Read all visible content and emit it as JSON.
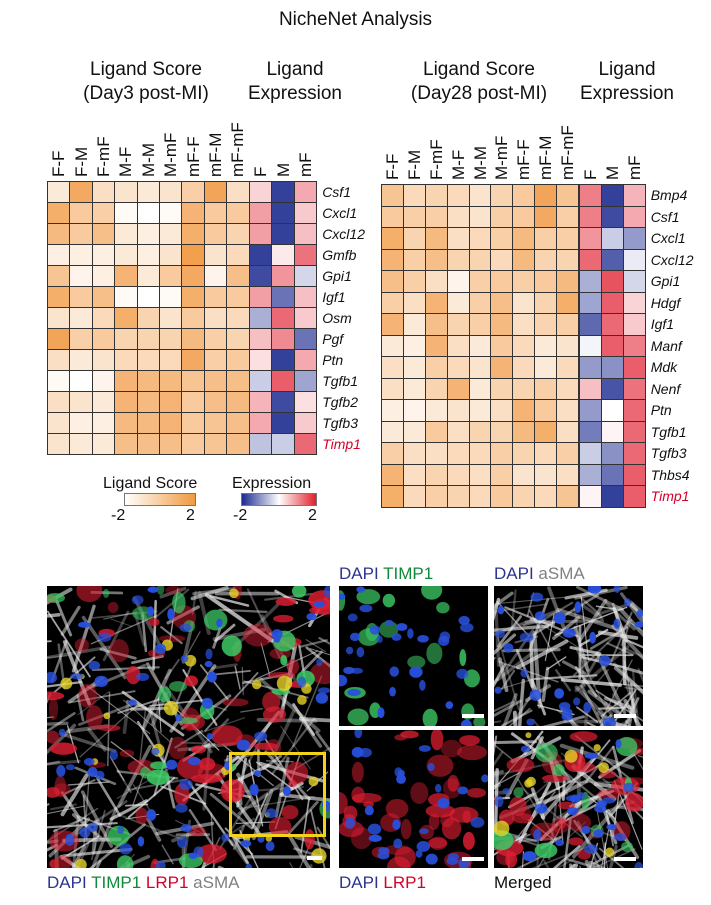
{
  "title": "NicheNet Analysis",
  "colors": {
    "dapi": "#2b3590",
    "timp1": "#0e8a3a",
    "lrp1": "#d4002a",
    "asma": "#808080",
    "gene_highlight": "#d4002a",
    "zoom_box": "#f2d21b"
  },
  "panel_day3": {
    "score_header": [
      "Ligand Score",
      "(Day3 post-MI)"
    ],
    "expr_header": [
      "Ligand",
      "Expression"
    ],
    "score_columns": [
      "F-F",
      "F-M",
      "F-mF",
      "M-F",
      "M-M",
      "M-mF",
      "mF-F",
      "mF-M",
      "mF-mF"
    ],
    "expr_columns": [
      "F",
      "M",
      "mF"
    ],
    "genes": [
      "Csf1",
      "Cxcl1",
      "Cxcl12",
      "Gmfb",
      "Gpi1",
      "Igf1",
      "Osm",
      "Pgf",
      "Ptn",
      "Tgfb1",
      "Tgfb2",
      "Tgfb3",
      "Timp1"
    ],
    "score": [
      [
        0.4,
        1.6,
        0.6,
        0.5,
        0.4,
        0.5,
        0.9,
        1.7,
        0.6
      ],
      [
        1.5,
        1.0,
        0.9,
        0.1,
        0.0,
        0.1,
        1.4,
        1.0,
        1.0
      ],
      [
        1.3,
        1.0,
        1.2,
        0.4,
        0.3,
        0.4,
        1.5,
        1.0,
        0.8
      ],
      [
        0.3,
        0.3,
        0.3,
        0.4,
        0.3,
        0.5,
        1.8,
        0.5,
        0.7
      ],
      [
        1.1,
        0.2,
        0.3,
        1.4,
        0.4,
        1.0,
        1.6,
        0.2,
        1.2
      ],
      [
        1.5,
        1.0,
        1.2,
        0.1,
        0.0,
        0.1,
        1.5,
        1.0,
        1.0
      ],
      [
        0.5,
        0.4,
        0.7,
        1.5,
        0.8,
        0.5,
        1.0,
        0.6,
        0.7
      ],
      [
        1.7,
        0.9,
        1.0,
        0.8,
        0.8,
        0.8,
        1.3,
        0.9,
        0.8
      ],
      [
        0.6,
        0.4,
        0.5,
        0.7,
        0.7,
        0.7,
        1.6,
        0.9,
        1.0
      ],
      [
        0.1,
        0.0,
        0.2,
        1.4,
        1.3,
        1.3,
        1.1,
        1.2,
        1.2
      ],
      [
        0.6,
        0.5,
        0.4,
        1.4,
        1.3,
        1.4,
        1.0,
        1.2,
        1.3
      ],
      [
        0.5,
        0.3,
        0.3,
        1.3,
        1.3,
        1.4,
        1.0,
        1.1,
        1.2
      ],
      [
        0.5,
        0.4,
        0.4,
        1.2,
        1.2,
        1.2,
        1.0,
        1.1,
        1.2
      ]
    ],
    "expression": [
      [
        0.4,
        -1.9,
        0.8
      ],
      [
        0.9,
        -1.9,
        0.5
      ],
      [
        0.9,
        -1.9,
        0.6
      ],
      [
        -1.9,
        0.2,
        1.3
      ],
      [
        -1.8,
        1.0,
        -0.4
      ],
      [
        0.9,
        -1.4,
        0.6
      ],
      [
        -0.8,
        1.4,
        0.5
      ],
      [
        0.6,
        1.1,
        -1.4
      ],
      [
        0.3,
        -1.9,
        0.8
      ],
      [
        -0.5,
        1.5,
        -0.9
      ],
      [
        0.7,
        -1.8,
        0.3
      ],
      [
        0.8,
        -1.9,
        0.5
      ],
      [
        -0.6,
        -0.5,
        1.4
      ]
    ]
  },
  "panel_day28": {
    "score_header": [
      "Ligand Score",
      "(Day28 post-MI)"
    ],
    "expr_header": [
      "Ligand",
      "Expression"
    ],
    "score_columns": [
      "F-F",
      "F-M",
      "F-mF",
      "M-F",
      "M-M",
      "M-mF",
      "mF-F",
      "mF-M",
      "mF-mF"
    ],
    "expr_columns": [
      "F",
      "M",
      "mF"
    ],
    "genes": [
      "Bmp4",
      "Csf1",
      "Cxcl1",
      "Cxcl12",
      "Gpi1",
      "Hdgf",
      "Igf1",
      "Manf",
      "Mdk",
      "Nenf",
      "Ptn",
      "Tgfb1",
      "Tgfb3",
      "Thbs4",
      "Timp1"
    ],
    "score": [
      [
        1.1,
        0.7,
        0.8,
        0.7,
        0.5,
        0.8,
        1.0,
        1.7,
        1.1
      ],
      [
        1.0,
        0.9,
        0.9,
        0.6,
        0.5,
        0.9,
        1.0,
        1.6,
        0.9
      ],
      [
        1.5,
        0.8,
        1.3,
        0.6,
        0.7,
        0.9,
        1.3,
        0.9,
        0.9
      ],
      [
        1.4,
        0.9,
        1.2,
        0.8,
        0.8,
        0.7,
        1.3,
        0.8,
        0.8
      ],
      [
        1.2,
        0.9,
        0.6,
        0.2,
        0.9,
        1.0,
        0.9,
        1.0,
        1.3
      ],
      [
        0.9,
        0.6,
        1.4,
        0.4,
        0.9,
        1.2,
        0.5,
        0.8,
        1.5
      ],
      [
        1.4,
        0.4,
        1.2,
        0.8,
        0.9,
        1.3,
        0.6,
        0.8,
        0.9
      ],
      [
        0.4,
        0.3,
        1.4,
        0.6,
        0.4,
        1.0,
        0.7,
        0.4,
        0.5
      ],
      [
        0.6,
        0.4,
        0.9,
        0.7,
        0.5,
        1.4,
        0.7,
        0.4,
        0.7
      ],
      [
        0.6,
        0.4,
        0.8,
        1.4,
        0.4,
        0.8,
        0.8,
        0.9,
        0.7
      ],
      [
        0.3,
        0.2,
        0.4,
        0.5,
        0.4,
        0.6,
        1.4,
        1.0,
        0.6
      ],
      [
        0.4,
        0.4,
        1.0,
        0.6,
        0.8,
        0.8,
        1.3,
        1.5,
        0.6
      ],
      [
        0.9,
        0.6,
        0.6,
        0.7,
        0.7,
        0.9,
        0.8,
        0.7,
        0.9
      ],
      [
        1.4,
        0.6,
        0.8,
        0.7,
        0.6,
        0.9,
        0.5,
        0.5,
        0.6
      ],
      [
        1.5,
        0.7,
        0.9,
        0.8,
        0.7,
        1.0,
        0.8,
        0.7,
        1.1
      ]
    ],
    "expression": [
      [
        1.2,
        -1.9,
        0.7
      ],
      [
        1.2,
        -1.8,
        0.8
      ],
      [
        1.0,
        -0.5,
        -1.0
      ],
      [
        1.4,
        -1.6,
        -0.2
      ],
      [
        -0.8,
        1.6,
        -0.4
      ],
      [
        -0.9,
        1.5,
        0.4
      ],
      [
        -1.5,
        1.4,
        0.5
      ],
      [
        -0.1,
        1.5,
        1.2
      ],
      [
        -1.0,
        -1.1,
        1.5
      ],
      [
        0.6,
        -1.7,
        1.3
      ],
      [
        -1.0,
        0.0,
        1.4
      ],
      [
        -1.3,
        0.1,
        1.4
      ],
      [
        -0.5,
        -1.1,
        1.4
      ],
      [
        -0.8,
        -1.4,
        1.5
      ],
      [
        0.1,
        -1.9,
        1.5
      ]
    ]
  },
  "legend": {
    "score_title": "Ligand Score",
    "score_min": "-2",
    "score_max": "2",
    "expr_title": "Expression",
    "expr_min": "-2",
    "expr_max": "2"
  },
  "micrographs": {
    "main_label": [
      {
        "text": "DAPI",
        "color": "dapi"
      },
      {
        "text": " TIMP1",
        "color": "timp1"
      },
      {
        "text": " LRP1",
        "color": "lrp1"
      },
      {
        "text": " aSMA",
        "color": "asma"
      }
    ],
    "top_left_label": [
      {
        "text": "DAPI",
        "color": "dapi"
      },
      {
        "text": " TIMP1",
        "color": "timp1"
      }
    ],
    "top_right_label": [
      {
        "text": "DAPI",
        "color": "dapi"
      },
      {
        "text": " aSMA",
        "color": "asma"
      }
    ],
    "bottom_left_label": [
      {
        "text": "DAPI",
        "color": "dapi"
      },
      {
        "text": " LRP1",
        "color": "lrp1"
      }
    ],
    "bottom_right_label": "Merged"
  }
}
